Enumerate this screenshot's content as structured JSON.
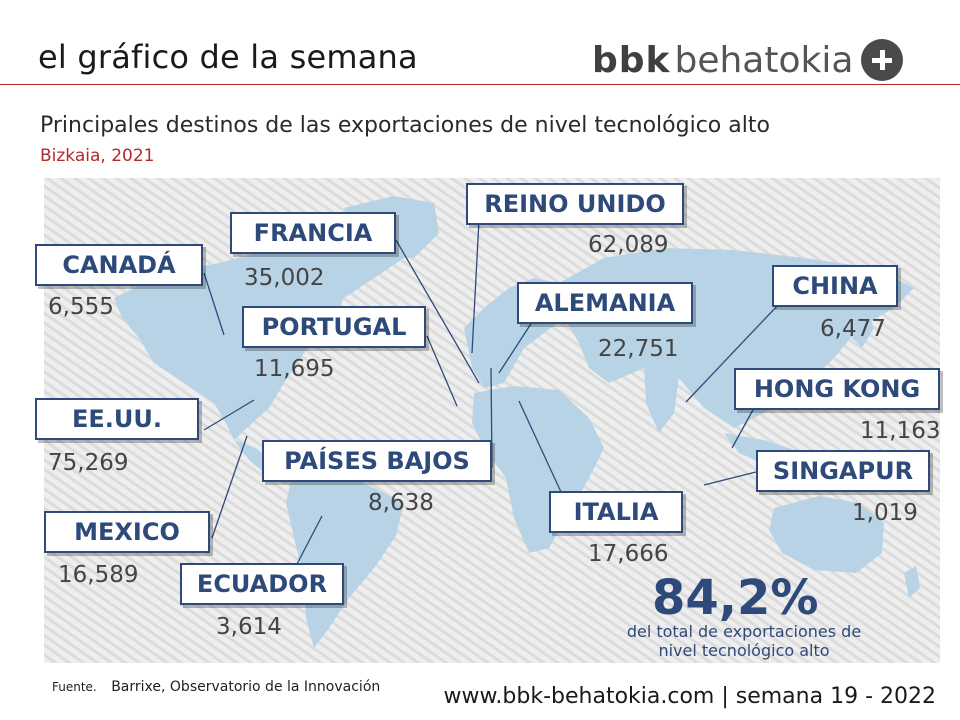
{
  "header": {
    "title": "el gráfico de la semana",
    "logo_bold": "bbk",
    "logo_word": "behatokia",
    "brand_color": "#b22a2a"
  },
  "chart": {
    "subtitle": "Principales destinos de las exportaciones de nivel tecnológico alto",
    "region": "Bizkaia, 2021"
  },
  "countries": [
    {
      "id": "canada",
      "name": "CANADÁ",
      "value": "6,555"
    },
    {
      "id": "francia",
      "name": "FRANCIA",
      "value": "35,002"
    },
    {
      "id": "reino-unido",
      "name": "REINO UNIDO",
      "value": "62,089"
    },
    {
      "id": "portugal",
      "name": "PORTUGAL",
      "value": "11,695"
    },
    {
      "id": "alemania",
      "name": "ALEMANIA",
      "value": "22,751"
    },
    {
      "id": "china",
      "name": "CHINA",
      "value": "6,477"
    },
    {
      "id": "eeuu",
      "name": "EE.UU.",
      "value": "75,269"
    },
    {
      "id": "hong-kong",
      "name": "HONG KONG",
      "value": "11,163"
    },
    {
      "id": "paises-bajos",
      "name": "PAÍSES BAJOS",
      "value": "8,638"
    },
    {
      "id": "singapur",
      "name": "SINGAPUR",
      "value": "1,019"
    },
    {
      "id": "mexico",
      "name": "MEXICO",
      "value": "16,589"
    },
    {
      "id": "italia",
      "name": "ITALIA",
      "value": "17,666"
    },
    {
      "id": "ecuador",
      "name": "ECUADOR",
      "value": "3,614"
    }
  ],
  "total": {
    "percent": "84,2%",
    "note": "del total de exportaciones de nivel tecnológico alto"
  },
  "source": {
    "label": "Fuente.",
    "text": "Barrixe, Observatorio de la Innovación"
  },
  "footer": "www.bbk-behatokia.com | semana 19 - 2022",
  "colors": {
    "label_border": "#2e4a7a",
    "land": "#b8d3e6",
    "stripe": "#d8d8d8"
  }
}
